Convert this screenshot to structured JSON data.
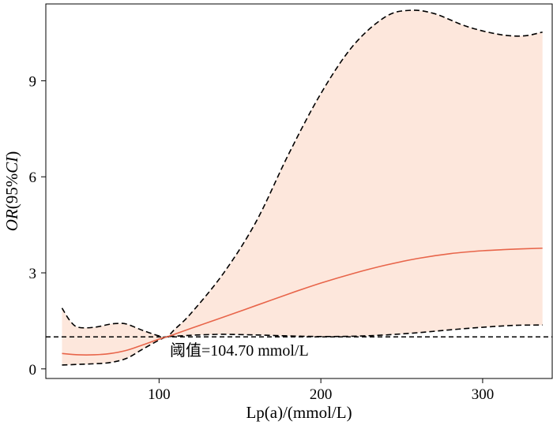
{
  "chart_data": {
    "type": "line",
    "xlabel": "Lp(a)/(mmol/L)",
    "ylabel": "OR(95%CI)",
    "ylabel_italic_parts": [
      "OR",
      "CI"
    ],
    "xlim": [
      30,
      343
    ],
    "ylim": [
      -0.3,
      11.4
    ],
    "x_ticks": [
      100,
      200,
      300
    ],
    "y_ticks": [
      0,
      3,
      6,
      9
    ],
    "reference_line": {
      "y": 1,
      "style": "dashed"
    },
    "annotation": {
      "text": "阈值=104.70 mmol/L",
      "x": 104.7,
      "y": 1
    },
    "colors": {
      "estimate": "#e8654a",
      "band": "#fde7dc",
      "ci": "#000000"
    },
    "series": [
      {
        "role": "estimate",
        "x": [
          40,
          50,
          60,
          70,
          80,
          90,
          100,
          104.7,
          110,
          120,
          140,
          160,
          180,
          200,
          220,
          240,
          260,
          280,
          300,
          320,
          337
        ],
        "values": [
          0.48,
          0.44,
          0.44,
          0.48,
          0.58,
          0.75,
          0.93,
          1.0,
          1.09,
          1.27,
          1.62,
          1.98,
          2.34,
          2.68,
          2.98,
          3.24,
          3.45,
          3.6,
          3.69,
          3.74,
          3.77
        ]
      },
      {
        "role": "ci_upper",
        "x": [
          40,
          45,
          50,
          60,
          70,
          75,
          80,
          90,
          100,
          104.7,
          110,
          120,
          140,
          160,
          180,
          200,
          220,
          240,
          255,
          270,
          290,
          310,
          325,
          337
        ],
        "values": [
          1.9,
          1.5,
          1.3,
          1.3,
          1.4,
          1.42,
          1.4,
          1.2,
          1.03,
          1.0,
          1.25,
          1.75,
          3.0,
          4.6,
          6.7,
          8.6,
          10.1,
          11.0,
          11.2,
          11.1,
          10.7,
          10.45,
          10.4,
          10.52
        ]
      },
      {
        "role": "ci_lower",
        "x": [
          40,
          50,
          60,
          70,
          80,
          90,
          100,
          104.7,
          110,
          120,
          130,
          140,
          160,
          180,
          200,
          220,
          240,
          260,
          280,
          300,
          320,
          337
        ],
        "values": [
          0.12,
          0.14,
          0.16,
          0.2,
          0.33,
          0.62,
          0.9,
          1.0,
          1.02,
          1.05,
          1.07,
          1.08,
          1.06,
          1.03,
          1.01,
          1.02,
          1.06,
          1.13,
          1.22,
          1.3,
          1.36,
          1.37
        ]
      }
    ]
  }
}
